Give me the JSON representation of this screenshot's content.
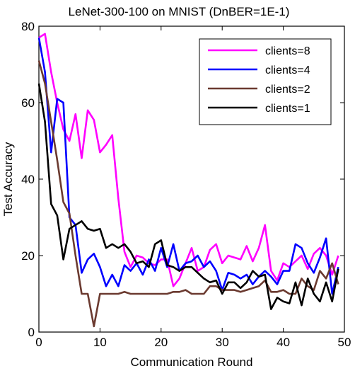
{
  "chart_data": {
    "type": "line",
    "title": "LeNet-300-100 on MNIST (DnBER=1E-1)",
    "xlabel": "Communication  Round",
    "ylabel": "Test  Accuracy",
    "xlim": [
      0,
      50
    ],
    "ylim": [
      0,
      80
    ],
    "xticks": [
      0,
      10,
      20,
      30,
      40,
      50
    ],
    "yticks": [
      0,
      20,
      40,
      60,
      80
    ],
    "grid": false,
    "legend_position": "top-right",
    "x": [
      0,
      1,
      2,
      3,
      4,
      5,
      6,
      7,
      8,
      9,
      10,
      11,
      12,
      13,
      14,
      15,
      16,
      17,
      18,
      19,
      20,
      21,
      22,
      23,
      24,
      25,
      26,
      27,
      28,
      29,
      30,
      31,
      32,
      33,
      34,
      35,
      36,
      37,
      38,
      39,
      40,
      41,
      42,
      43,
      44,
      45,
      46,
      47,
      48,
      49
    ],
    "series": [
      {
        "name": "clients=8",
        "color": "#ff00ff",
        "values": [
          77,
          78,
          68,
          60,
          53,
          50,
          57,
          45.5,
          58,
          55.5,
          47,
          49,
          51.5,
          35,
          21,
          17,
          20,
          19.5,
          18,
          17.5,
          19,
          19,
          12,
          14,
          18,
          22,
          16,
          17,
          21.5,
          23,
          18,
          20,
          19.5,
          19,
          22.5,
          18.5,
          22,
          28,
          16,
          13.5,
          18,
          17,
          18.5,
          20,
          16.5,
          20.5,
          22,
          20,
          15,
          20
        ]
      },
      {
        "name": "clients=4",
        "color": "#0000ff",
        "values": [
          77,
          68,
          47,
          61,
          60,
          30,
          28,
          15.5,
          19,
          20.5,
          17,
          12,
          15,
          12,
          17.5,
          16,
          18,
          15,
          19,
          16,
          22,
          17,
          23,
          16,
          18,
          18.5,
          20,
          17,
          18.5,
          16,
          11,
          15.5,
          15,
          14,
          15,
          12.5,
          14.5,
          16,
          14.5,
          12.5,
          16,
          16,
          23,
          22,
          18,
          15.5,
          19.5,
          24.5,
          10,
          17
        ]
      },
      {
        "name": "clients=2",
        "color": "#6b3a30",
        "values": [
          71,
          65,
          55,
          45,
          34,
          31,
          20,
          10,
          10,
          1.5,
          10,
          10,
          10,
          10,
          10.5,
          10,
          10,
          10,
          10,
          10,
          10,
          10,
          10.5,
          10.5,
          11,
          10,
          10,
          10,
          12,
          12,
          11,
          11,
          11,
          10.5,
          11,
          11.5,
          12,
          13.5,
          10.5,
          10.5,
          11,
          10,
          10,
          14,
          12,
          11,
          16,
          14,
          18,
          12.5
        ]
      },
      {
        "name": "clients=1",
        "color": "#000000",
        "values": [
          65,
          55,
          33.5,
          30.5,
          19,
          27,
          28,
          29,
          27,
          26.5,
          27,
          22,
          23,
          22,
          23,
          21,
          18,
          18.5,
          17,
          23,
          24,
          17.5,
          17,
          16,
          17,
          17,
          15.5,
          14,
          13,
          13.5,
          10,
          13,
          13,
          11.5,
          13,
          16,
          14.5,
          15,
          6,
          9,
          8,
          7.5,
          13,
          7,
          14,
          10,
          8,
          13,
          8,
          16.5
        ]
      }
    ]
  }
}
